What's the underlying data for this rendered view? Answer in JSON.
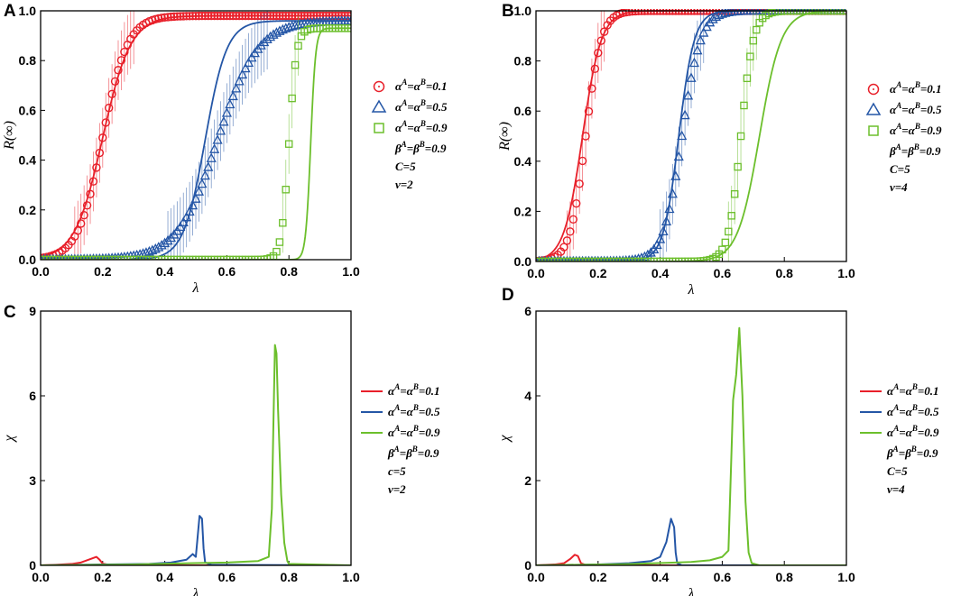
{
  "chart_data": [
    {
      "panel": "A",
      "type": "line",
      "xlabel": "λ",
      "ylabel": "R(∞)",
      "xlim": [
        0.0,
        1.0
      ],
      "ylim": [
        0.0,
        1.0
      ],
      "xticks": [
        "0.0",
        "0.2",
        "0.4",
        "0.6",
        "0.8",
        "1.0"
      ],
      "yticks": [
        "0.0",
        "0.2",
        "0.4",
        "0.6",
        "0.8",
        "1.0"
      ],
      "series": [
        {
          "name": "α^A=α^B=0.1",
          "color": "#e8202a",
          "marker": "circle",
          "midpoint": 0.2,
          "width": 0.04,
          "theory_midpoint": 0.2,
          "theory_width": 0.045,
          "max": 0.98
        },
        {
          "name": "α^A=α^B=0.5",
          "color": "#2456a6",
          "marker": "triangle",
          "midpoint": 0.57,
          "width": 0.065,
          "theory_midpoint": 0.53,
          "theory_width": 0.035,
          "max": 0.96
        },
        {
          "name": "α^A=α^B=0.9",
          "color": "#6cbf2c",
          "marker": "square",
          "midpoint": 0.8,
          "width": 0.012,
          "theory_midpoint": 0.87,
          "theory_width": 0.008,
          "max": 0.93
        }
      ],
      "legend_labels": [
        {
          "pre": "α",
          "sup1": "A",
          "mid": "=α",
          "sup2": "B",
          "post": "=0.1"
        },
        {
          "pre": "α",
          "sup1": "A",
          "mid": "=α",
          "sup2": "B",
          "post": "=0.5"
        },
        {
          "pre": "α",
          "sup1": "A",
          "mid": "=α",
          "sup2": "B",
          "post": "=0.9"
        }
      ],
      "params": [
        {
          "pre": "β",
          "sup1": "A",
          "mid": "=β",
          "sup2": "B",
          "post": "=0.9"
        },
        {
          "pre": "C=5"
        },
        {
          "pre": "v=2"
        }
      ]
    },
    {
      "panel": "B",
      "type": "line",
      "xlabel": "λ",
      "ylabel": "R(∞)",
      "xlim": [
        0.0,
        1.0
      ],
      "ylim": [
        0.0,
        1.0
      ],
      "xticks": [
        "0.0",
        "0.2",
        "0.4",
        "0.6",
        "0.8",
        "1.0"
      ],
      "yticks": [
        "0.0",
        "0.2",
        "0.4",
        "0.6",
        "0.8",
        "1.0"
      ],
      "series": [
        {
          "name": "α^A=α^B=0.1",
          "color": "#e8202a",
          "marker": "circle",
          "midpoint": 0.16,
          "width": 0.025,
          "theory_midpoint": 0.15,
          "theory_width": 0.03,
          "max": 1.0
        },
        {
          "name": "α^A=α^B=0.5",
          "color": "#2456a6",
          "marker": "triangle",
          "midpoint": 0.47,
          "width": 0.03,
          "theory_midpoint": 0.46,
          "theory_width": 0.025,
          "max": 1.0
        },
        {
          "name": "α^A=α^B=0.9",
          "color": "#6cbf2c",
          "marker": "square",
          "midpoint": 0.66,
          "width": 0.02,
          "theory_midpoint": 0.72,
          "theory_width": 0.035,
          "max": 1.0
        }
      ],
      "legend_labels": [
        {
          "pre": "α",
          "sup1": "A",
          "mid": "=α",
          "sup2": "B",
          "post": "=0.1"
        },
        {
          "pre": "α",
          "sup1": "A",
          "mid": "=α",
          "sup2": "B",
          "post": "=0.5"
        },
        {
          "pre": "α",
          "sup1": "A",
          "mid": "=α",
          "sup2": "B",
          "post": "=0.9"
        }
      ],
      "params": [
        {
          "pre": "β",
          "sup1": "A",
          "mid": "=β",
          "sup2": "B",
          "post": "=0.9"
        },
        {
          "pre": "C=5"
        },
        {
          "pre": "v=4"
        }
      ]
    },
    {
      "panel": "C",
      "type": "line",
      "xlabel": "λ",
      "ylabel": "χ",
      "xlim": [
        0.0,
        1.0
      ],
      "ylim": [
        0,
        9
      ],
      "xticks": [
        "0.0",
        "0.2",
        "0.4",
        "0.6",
        "0.8",
        "1.0"
      ],
      "yticks": [
        "0",
        "3",
        "6",
        "9"
      ],
      "series": [
        {
          "name": "α^A=α^B=0.1",
          "color": "#e8202a",
          "points": [
            [
              0.0,
              0.0
            ],
            [
              0.05,
              0.02
            ],
            [
              0.1,
              0.05
            ],
            [
              0.13,
              0.1
            ],
            [
              0.16,
              0.22
            ],
            [
              0.18,
              0.3
            ],
            [
              0.19,
              0.2
            ],
            [
              0.2,
              0.06
            ],
            [
              0.22,
              0.02
            ],
            [
              0.3,
              0.0
            ],
            [
              1.0,
              0.0
            ]
          ]
        },
        {
          "name": "α^A=α^B=0.5",
          "color": "#2456a6",
          "points": [
            [
              0.0,
              0.0
            ],
            [
              0.2,
              0.03
            ],
            [
              0.35,
              0.05
            ],
            [
              0.42,
              0.1
            ],
            [
              0.47,
              0.2
            ],
            [
              0.49,
              0.4
            ],
            [
              0.5,
              0.3
            ],
            [
              0.505,
              0.9
            ],
            [
              0.512,
              1.75
            ],
            [
              0.52,
              1.65
            ],
            [
              0.525,
              0.6
            ],
            [
              0.53,
              0.1
            ],
            [
              0.55,
              0.02
            ],
            [
              1.0,
              0.0
            ]
          ]
        },
        {
          "name": "α^A=α^B=0.9",
          "color": "#6cbf2c",
          "points": [
            [
              0.0,
              0.0
            ],
            [
              0.3,
              0.03
            ],
            [
              0.5,
              0.08
            ],
            [
              0.6,
              0.1
            ],
            [
              0.7,
              0.15
            ],
            [
              0.735,
              0.3
            ],
            [
              0.745,
              2.0
            ],
            [
              0.75,
              5.0
            ],
            [
              0.755,
              7.8
            ],
            [
              0.76,
              7.5
            ],
            [
              0.765,
              5.5
            ],
            [
              0.775,
              2.5
            ],
            [
              0.785,
              0.8
            ],
            [
              0.795,
              0.15
            ],
            [
              0.8,
              0.05
            ],
            [
              1.0,
              0.0
            ]
          ]
        }
      ],
      "legend_labels": [
        {
          "pre": "α",
          "sup1": "A",
          "mid": "=α",
          "sup2": "B",
          "post": "=0.1"
        },
        {
          "pre": "α",
          "sup1": "A",
          "mid": "=α",
          "sup2": "B",
          "post": "=0.5"
        },
        {
          "pre": "α",
          "sup1": "A",
          "mid": "=α",
          "sup2": "B",
          "post": "=0.9"
        }
      ],
      "params": [
        {
          "pre": "β",
          "sup1": "A",
          "mid": "=β",
          "sup2": "B",
          "post": "=0.9"
        },
        {
          "pre": "c=5"
        },
        {
          "pre": "v=2"
        }
      ]
    },
    {
      "panel": "D",
      "type": "line",
      "xlabel": "λ",
      "ylabel": "χ",
      "xlim": [
        0.0,
        1.0
      ],
      "ylim": [
        0,
        6
      ],
      "xticks": [
        "0.0",
        "0.2",
        "0.4",
        "0.6",
        "0.8",
        "1.0"
      ],
      "yticks": [
        "0",
        "2",
        "4",
        "6"
      ],
      "series": [
        {
          "name": "α^A=α^B=0.1",
          "color": "#e8202a",
          "points": [
            [
              0.0,
              0.0
            ],
            [
              0.06,
              0.02
            ],
            [
              0.09,
              0.05
            ],
            [
              0.11,
              0.15
            ],
            [
              0.125,
              0.25
            ],
            [
              0.135,
              0.22
            ],
            [
              0.145,
              0.05
            ],
            [
              0.16,
              0.01
            ],
            [
              0.25,
              0.0
            ],
            [
              1.0,
              0.0
            ]
          ]
        },
        {
          "name": "α^A=α^B=0.5",
          "color": "#2456a6",
          "points": [
            [
              0.0,
              0.0
            ],
            [
              0.2,
              0.02
            ],
            [
              0.3,
              0.05
            ],
            [
              0.37,
              0.1
            ],
            [
              0.4,
              0.2
            ],
            [
              0.42,
              0.55
            ],
            [
              0.435,
              1.1
            ],
            [
              0.445,
              0.9
            ],
            [
              0.45,
              0.3
            ],
            [
              0.455,
              0.05
            ],
            [
              0.47,
              0.0
            ],
            [
              1.0,
              0.0
            ]
          ]
        },
        {
          "name": "α^A=α^B=0.9",
          "color": "#6cbf2c",
          "points": [
            [
              0.0,
              0.0
            ],
            [
              0.3,
              0.03
            ],
            [
              0.5,
              0.08
            ],
            [
              0.56,
              0.12
            ],
            [
              0.6,
              0.2
            ],
            [
              0.62,
              0.35
            ],
            [
              0.635,
              3.9
            ],
            [
              0.645,
              4.5
            ],
            [
              0.655,
              5.6
            ],
            [
              0.665,
              4.0
            ],
            [
              0.675,
              1.5
            ],
            [
              0.685,
              0.3
            ],
            [
              0.695,
              0.05
            ],
            [
              0.72,
              0.0
            ],
            [
              1.0,
              0.0
            ]
          ]
        }
      ],
      "legend_labels": [
        {
          "pre": "α",
          "sup1": "A",
          "mid": "=α",
          "sup2": "B",
          "post": "=0.1"
        },
        {
          "pre": "α",
          "sup1": "A",
          "mid": "=α",
          "sup2": "B",
          "post": "=0.5"
        },
        {
          "pre": "α",
          "sup1": "A",
          "mid": "=α",
          "sup2": "B",
          "post": "=0.9"
        }
      ],
      "params": [
        {
          "pre": "β",
          "sup1": "A",
          "mid": "=β",
          "sup2": "B",
          "post": "=0.9"
        },
        {
          "pre": "C=5"
        },
        {
          "pre": "v=4"
        }
      ]
    }
  ]
}
